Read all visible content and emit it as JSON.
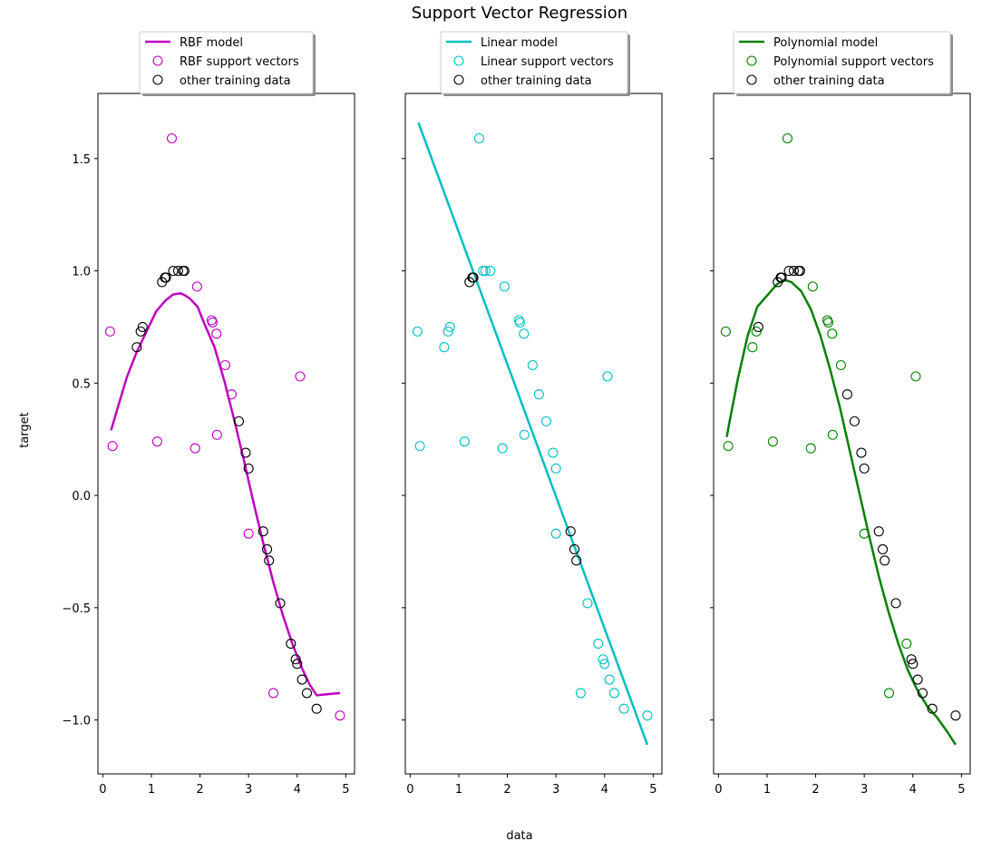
{
  "suptitle": "Support Vector Regression",
  "ylabel": "target",
  "xlabel": "data",
  "chart_data": [
    {
      "type": "scatter",
      "model": {
        "name": "RBF model",
        "color": "#bf00bf",
        "x": [
          0.17,
          0.32,
          0.5,
          0.7,
          0.9,
          1.1,
          1.3,
          1.45,
          1.6,
          1.7,
          1.8,
          1.95,
          2.1,
          2.3,
          2.5,
          2.7,
          2.9,
          3.1,
          3.3,
          3.5,
          3.7,
          3.9,
          4.1,
          4.25,
          4.4,
          4.88
        ],
        "y": [
          0.29,
          0.4,
          0.53,
          0.64,
          0.73,
          0.82,
          0.87,
          0.895,
          0.9,
          0.89,
          0.875,
          0.84,
          0.76,
          0.66,
          0.51,
          0.34,
          0.16,
          -0.03,
          -0.21,
          -0.38,
          -0.53,
          -0.66,
          -0.77,
          -0.84,
          -0.89,
          -0.88
        ]
      },
      "legend": {
        "model_label": "RBF model",
        "sv_label": "RBF support vectors",
        "other_label": "other training data"
      },
      "support_vectors": {
        "x": [
          0.15,
          0.2,
          1.12,
          1.42,
          1.9,
          1.94,
          2.24,
          2.26,
          2.34,
          2.35,
          2.52,
          2.65,
          3.0,
          3.51,
          4.06,
          4.88
        ],
        "y": [
          0.73,
          0.22,
          0.24,
          1.59,
          0.21,
          0.93,
          0.78,
          0.77,
          0.72,
          0.27,
          0.58,
          0.45,
          -0.17,
          -0.88,
          0.53,
          -0.98
        ]
      },
      "other": {
        "x": [
          0.7,
          0.78,
          0.82,
          1.22,
          1.28,
          1.3,
          1.45,
          1.55,
          1.65,
          1.68,
          2.8,
          2.94,
          3.0,
          3.3,
          3.38,
          3.42,
          3.65,
          3.87,
          3.97,
          4.0,
          4.1,
          4.2,
          4.4
        ],
        "y": [
          0.66,
          0.73,
          0.75,
          0.95,
          0.97,
          0.97,
          1.0,
          1.0,
          1.0,
          1.0,
          0.33,
          0.19,
          0.12,
          -0.16,
          -0.24,
          -0.29,
          -0.48,
          -0.66,
          -0.73,
          -0.75,
          -0.82,
          -0.88,
          -0.95
        ]
      }
    },
    {
      "type": "scatter",
      "model": {
        "name": "Linear model",
        "color": "#00bfbf",
        "x": [
          0.17,
          4.88
        ],
        "y": [
          1.66,
          -1.11
        ]
      },
      "legend": {
        "model_label": "Linear model",
        "sv_label": "Linear support vectors",
        "other_label": "other training data"
      },
      "support_vectors": {
        "x": [
          0.15,
          0.2,
          0.7,
          0.78,
          0.82,
          1.12,
          1.42,
          1.5,
          1.55,
          1.65,
          1.9,
          1.94,
          2.24,
          2.26,
          2.34,
          2.35,
          2.52,
          2.65,
          2.8,
          2.94,
          3.0,
          3.0,
          3.51,
          3.65,
          3.87,
          3.97,
          4.0,
          4.06,
          4.1,
          4.2,
          4.4,
          4.88
        ],
        "y": [
          0.73,
          0.22,
          0.66,
          0.73,
          0.75,
          0.24,
          1.59,
          1.0,
          1.0,
          1.0,
          0.21,
          0.93,
          0.78,
          0.77,
          0.72,
          0.27,
          0.58,
          0.45,
          0.33,
          0.19,
          0.12,
          -0.17,
          -0.88,
          -0.48,
          -0.66,
          -0.73,
          -0.75,
          0.53,
          -0.82,
          -0.88,
          -0.95,
          -0.98
        ]
      },
      "other": {
        "x": [
          1.22,
          1.28,
          1.3,
          3.3,
          3.38,
          3.42
        ],
        "y": [
          0.95,
          0.97,
          0.97,
          -0.16,
          -0.24,
          -0.29
        ]
      }
    },
    {
      "type": "scatter",
      "model": {
        "name": "Polynomial model",
        "color": "#008000",
        "x": [
          0.17,
          0.22,
          0.4,
          0.6,
          0.8,
          1.0,
          1.2,
          1.35,
          1.5,
          1.7,
          1.9,
          2.1,
          2.3,
          2.5,
          2.7,
          2.9,
          3.1,
          3.3,
          3.5,
          3.7,
          3.9,
          4.1,
          4.3,
          4.5,
          4.7,
          4.88
        ],
        "y": [
          0.26,
          0.32,
          0.52,
          0.71,
          0.84,
          0.89,
          0.94,
          0.96,
          0.95,
          0.91,
          0.83,
          0.71,
          0.56,
          0.39,
          0.2,
          0.01,
          -0.18,
          -0.36,
          -0.52,
          -0.66,
          -0.78,
          -0.87,
          -0.94,
          -0.99,
          -1.05,
          -1.11
        ]
      },
      "legend": {
        "model_label": "Polynomial model",
        "sv_label": "Polynomial support vectors",
        "other_label": "other training data"
      },
      "support_vectors": {
        "x": [
          0.15,
          0.2,
          0.7,
          0.78,
          1.12,
          1.42,
          1.9,
          1.94,
          2.24,
          2.26,
          2.34,
          2.35,
          2.52,
          3.0,
          3.51,
          3.87,
          4.06
        ],
        "y": [
          0.73,
          0.22,
          0.66,
          0.73,
          0.24,
          1.59,
          0.21,
          0.93,
          0.78,
          0.77,
          0.72,
          0.27,
          0.58,
          -0.17,
          -0.88,
          -0.66,
          0.53
        ]
      },
      "other": {
        "x": [
          0.82,
          1.22,
          1.28,
          1.3,
          1.45,
          1.55,
          1.65,
          1.68,
          2.65,
          2.8,
          2.94,
          3.0,
          3.3,
          3.38,
          3.42,
          3.65,
          3.97,
          4.0,
          4.1,
          4.2,
          4.4,
          4.88
        ],
        "y": [
          0.75,
          0.95,
          0.97,
          0.97,
          1.0,
          1.0,
          1.0,
          1.0,
          0.45,
          0.33,
          0.19,
          0.12,
          -0.16,
          -0.24,
          -0.29,
          -0.48,
          -0.73,
          -0.75,
          -0.82,
          -0.88,
          -0.95,
          -0.98
        ]
      }
    }
  ],
  "axes": {
    "xlim": [
      -0.1,
      5.18
    ],
    "ylim": [
      -1.24,
      1.79
    ],
    "xticks": [
      0,
      1,
      2,
      3,
      4,
      5
    ],
    "xtick_labels": [
      "0",
      "1",
      "2",
      "3",
      "4",
      "5"
    ],
    "yticks": [
      -1.0,
      -0.5,
      0.0,
      0.5,
      1.0,
      1.5
    ],
    "ytick_labels": [
      "−1.0",
      "−0.5",
      "0.0",
      "0.5",
      "1.0",
      "1.5"
    ],
    "other_color": "#000000"
  }
}
